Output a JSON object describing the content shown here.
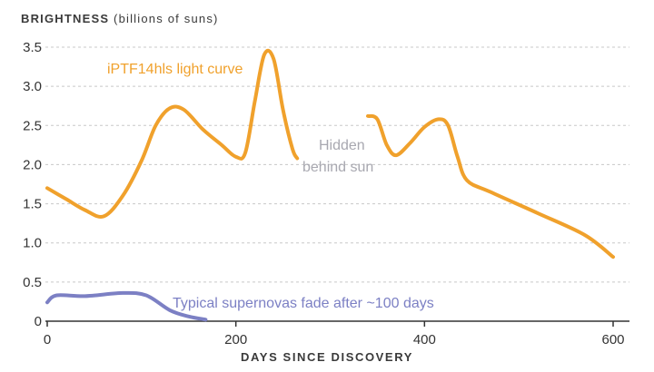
{
  "chart_data": {
    "type": "line",
    "ylabel_caps": "BRIGHTNESS",
    "ylabel_unit": "(billions of suns)",
    "xlabel": "DAYS SINCE DISCOVERY",
    "xlim": [
      0,
      600
    ],
    "ylim": [
      0,
      3.5
    ],
    "xticks": [
      "0",
      "200",
      "400",
      "600"
    ],
    "yticks": [
      "0",
      "0.5",
      "1.0",
      "1.5",
      "2.0",
      "2.5",
      "3.0",
      "3.5"
    ],
    "grid": true,
    "colors": {
      "orange": "#F0A12C",
      "purple": "#7C80C4",
      "gray_text": "#A8A8B0"
    },
    "series": [
      {
        "name": "iPTF14hls light curve",
        "color": "#F0A12C",
        "segments": [
          [
            [
              0,
              1.7
            ],
            [
              20,
              1.56
            ],
            [
              40,
              1.42
            ],
            [
              60,
              1.34
            ],
            [
              80,
              1.6
            ],
            [
              100,
              2.05
            ],
            [
              115,
              2.5
            ],
            [
              130,
              2.72
            ],
            [
              145,
              2.7
            ],
            [
              165,
              2.45
            ],
            [
              185,
              2.25
            ],
            [
              200,
              2.1
            ],
            [
              210,
              2.15
            ],
            [
              220,
              2.8
            ],
            [
              230,
              3.4
            ],
            [
              240,
              3.35
            ],
            [
              250,
              2.7
            ],
            [
              260,
              2.2
            ],
            [
              265,
              2.08
            ]
          ],
          [
            [
              340,
              2.62
            ],
            [
              350,
              2.58
            ],
            [
              360,
              2.25
            ],
            [
              370,
              2.12
            ],
            [
              385,
              2.28
            ],
            [
              400,
              2.48
            ],
            [
              415,
              2.58
            ],
            [
              425,
              2.5
            ],
            [
              435,
              2.1
            ],
            [
              445,
              1.8
            ],
            [
              470,
              1.65
            ],
            [
              520,
              1.38
            ],
            [
              570,
              1.1
            ],
            [
              600,
              0.82
            ]
          ]
        ]
      },
      {
        "name": "Typical supernovas",
        "color": "#7C80C4",
        "segments": [
          [
            [
              0,
              0.24
            ],
            [
              10,
              0.33
            ],
            [
              40,
              0.32
            ],
            [
              80,
              0.36
            ],
            [
              105,
              0.33
            ],
            [
              130,
              0.14
            ],
            [
              150,
              0.06
            ],
            [
              168,
              0.02
            ]
          ]
        ]
      }
    ],
    "annotations": {
      "series_label": "iPTF14hls light curve",
      "hidden_line1": "Hidden",
      "hidden_line2": "behind sun",
      "typical_note": "Typical supernovas fade after ~100 days"
    }
  }
}
